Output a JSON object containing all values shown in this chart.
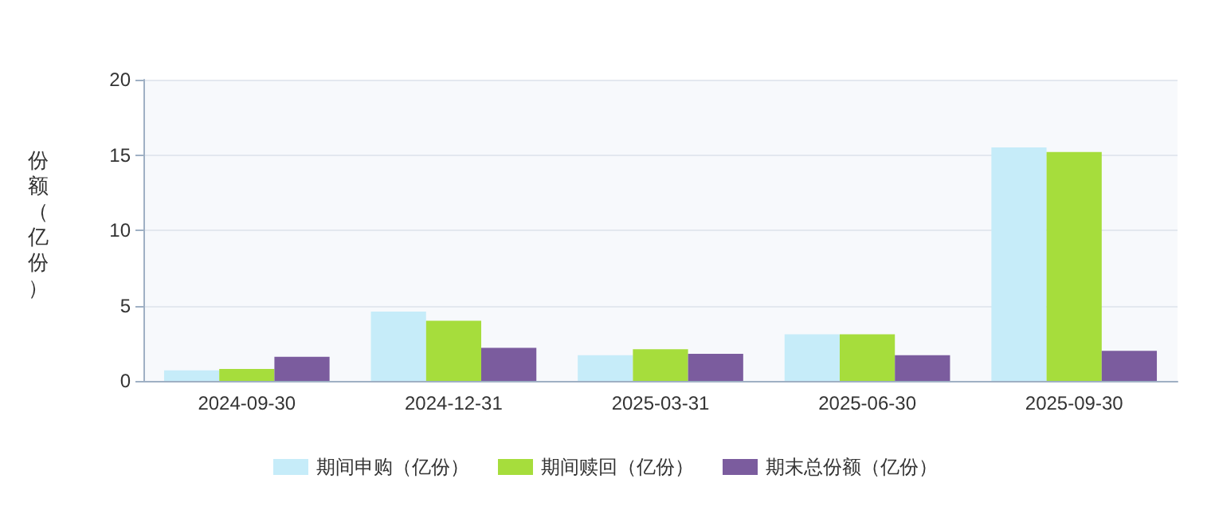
{
  "chart_data": {
    "type": "bar",
    "ylabel": "份额（亿份）",
    "categories": [
      "2024-09-30",
      "2024-12-31",
      "2025-03-31",
      "2025-06-30",
      "2025-09-30"
    ],
    "series": [
      {
        "name": "期间申购（亿份）",
        "color": "#c6ecf9",
        "values": [
          0.7,
          4.6,
          1.7,
          3.1,
          15.5
        ]
      },
      {
        "name": "期间赎回（亿份）",
        "color": "#a6dd3c",
        "values": [
          0.8,
          4.0,
          2.1,
          3.1,
          15.2
        ]
      },
      {
        "name": "期末总份额（亿份）",
        "color": "#7b5c9e",
        "values": [
          1.6,
          2.2,
          1.8,
          1.7,
          2.0
        ]
      }
    ],
    "ylim": [
      0,
      20
    ],
    "yticks": [
      0,
      5,
      10,
      15,
      20
    ],
    "grid": "y",
    "legend": "bottom"
  }
}
